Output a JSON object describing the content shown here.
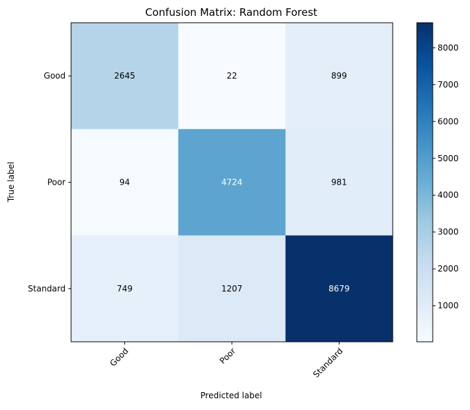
{
  "chart_data": {
    "type": "heatmap",
    "title": "Confusion Matrix: Random Forest",
    "xlabel": "Predicted label",
    "ylabel": "True label",
    "x_categories": [
      "Good",
      "Poor",
      "Standard"
    ],
    "y_categories": [
      "Good",
      "Poor",
      "Standard"
    ],
    "values": [
      [
        2645,
        22,
        899
      ],
      [
        94,
        4724,
        981
      ],
      [
        749,
        1207,
        8679
      ]
    ],
    "colormap": "Blues",
    "color_range": [
      22,
      8679
    ],
    "colorbar_ticks": [
      1000,
      2000,
      3000,
      4000,
      5000,
      6000,
      7000,
      8000
    ],
    "grid": false
  }
}
